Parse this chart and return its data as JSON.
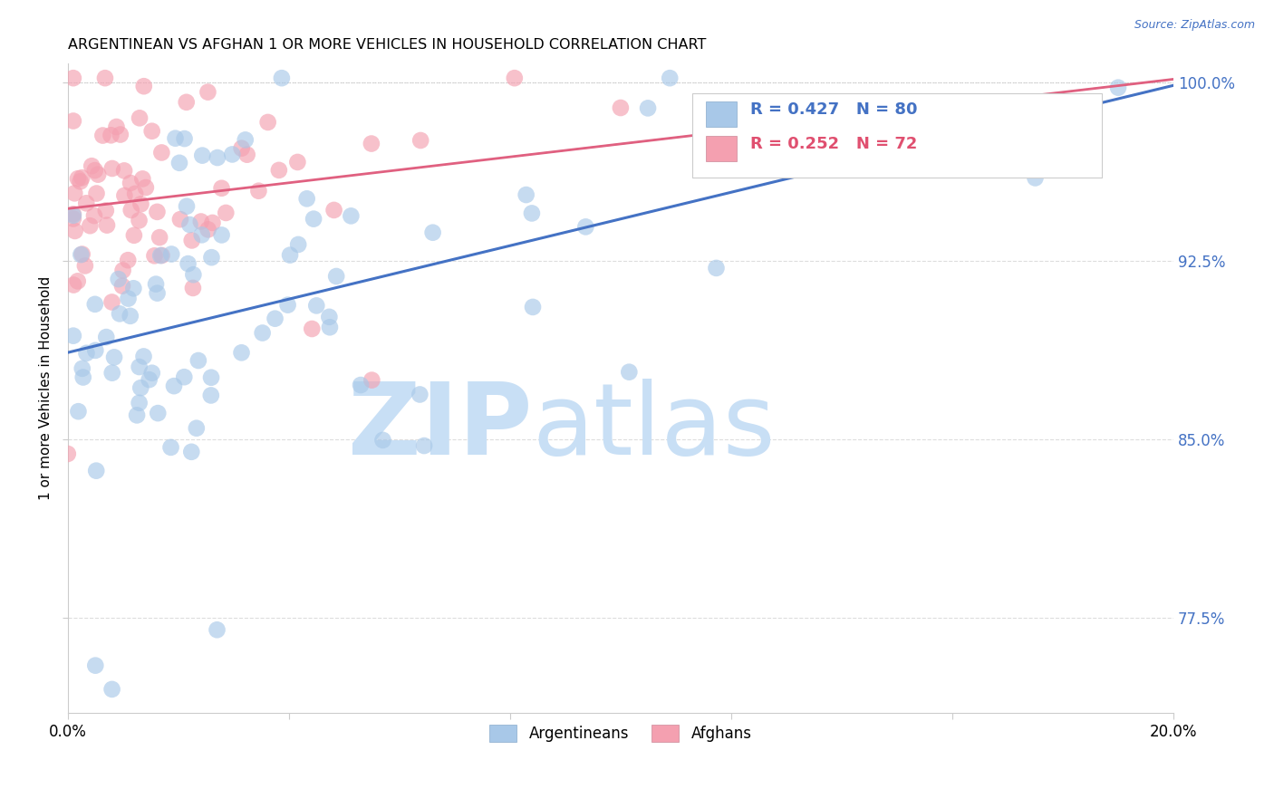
{
  "title": "ARGENTINEAN VS AFGHAN 1 OR MORE VEHICLES IN HOUSEHOLD CORRELATION CHART",
  "source": "Source: ZipAtlas.com",
  "ylabel": "1 or more Vehicles in Household",
  "xlim": [
    0.0,
    0.2
  ],
  "ylim": [
    0.735,
    1.008
  ],
  "xticks": [
    0.0,
    0.04,
    0.08,
    0.12,
    0.16,
    0.2
  ],
  "xticklabels": [
    "0.0%",
    "",
    "",
    "",
    "",
    "20.0%"
  ],
  "yticks": [
    0.775,
    0.85,
    0.925,
    1.0
  ],
  "yticklabels": [
    "77.5%",
    "85.0%",
    "92.5%",
    "100.0%"
  ],
  "blue_color": "#a8c8e8",
  "pink_color": "#f4a0b0",
  "blue_line_color": "#4472c4",
  "pink_line_color": "#e06080",
  "legend_argentineans": "Argentineans",
  "legend_afghans": "Afghans",
  "watermark": "ZIPatlas",
  "watermark_color": "#ddeeff",
  "blue_R": 0.427,
  "blue_N": 80,
  "pink_R": 0.252,
  "pink_N": 72
}
